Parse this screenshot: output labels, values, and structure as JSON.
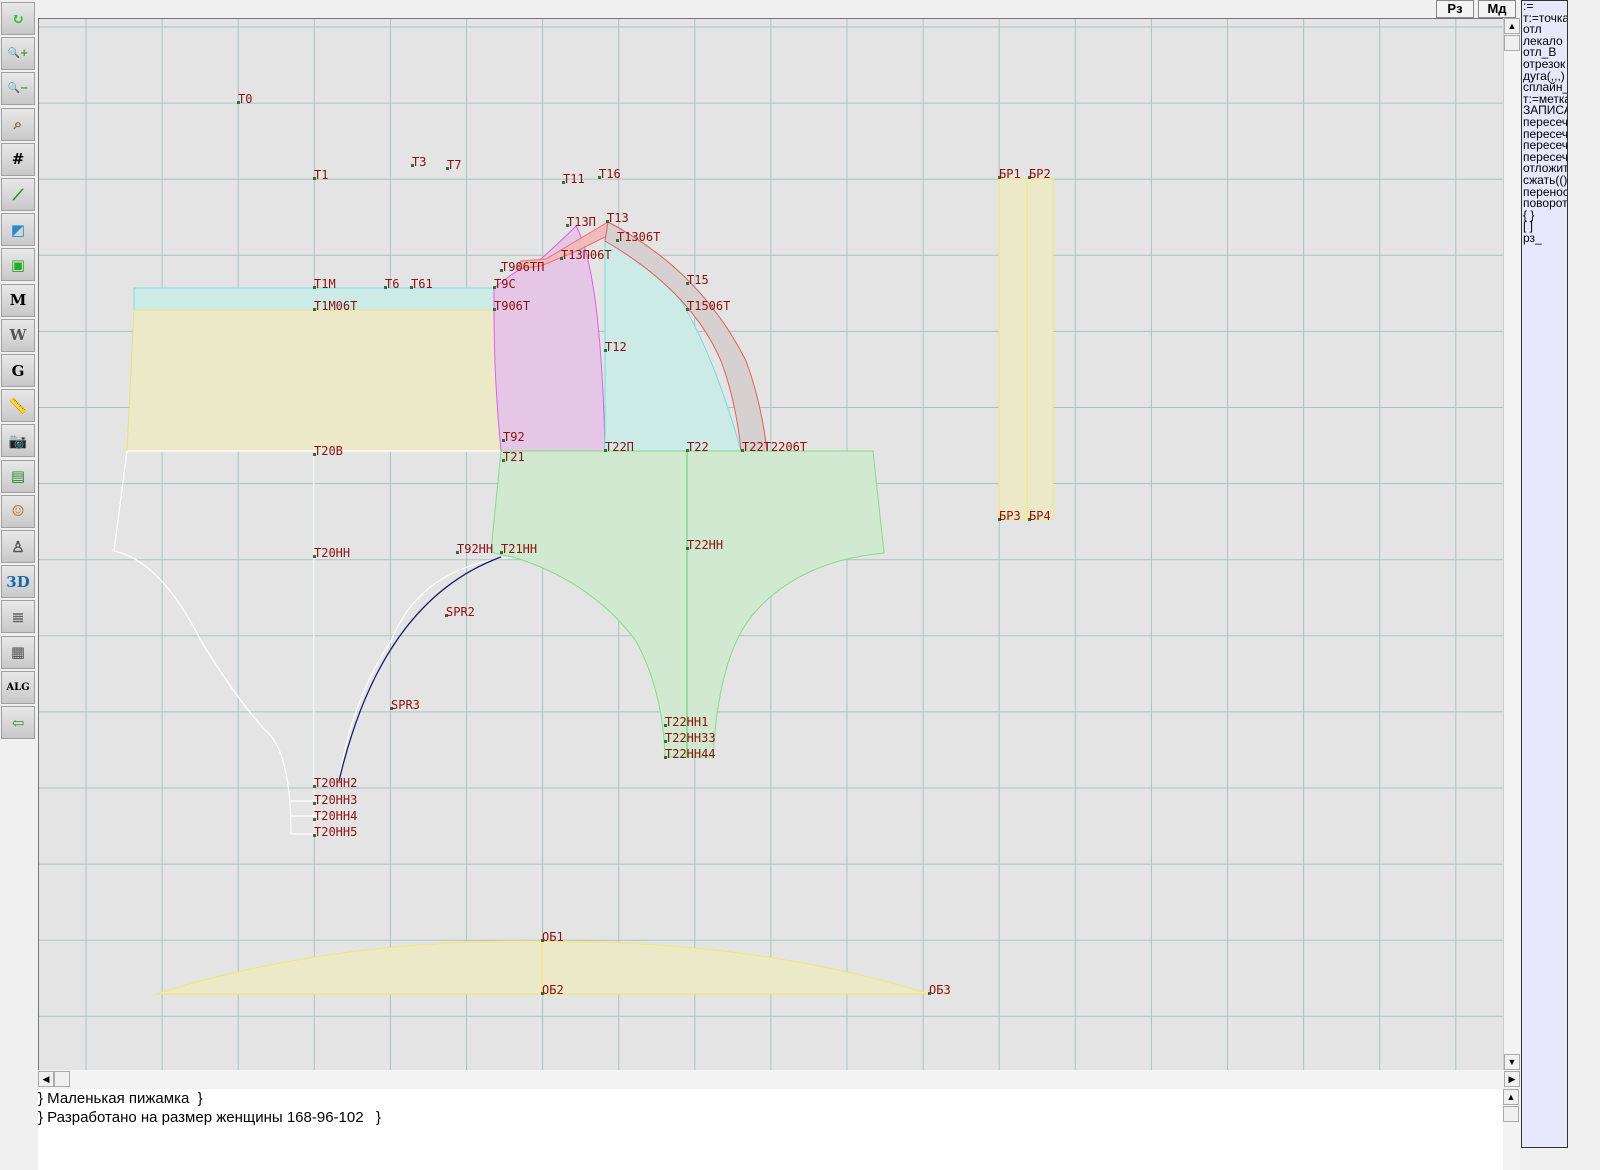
{
  "toolbar": {
    "tools": [
      {
        "icon": "refresh-icon",
        "glyph": "↻",
        "color": "#30c030"
      },
      {
        "icon": "zoom-in-icon",
        "glyph": "🔍+",
        "color": "#2a9a2a"
      },
      {
        "icon": "zoom-out-icon",
        "glyph": "🔍−",
        "color": "#2a9a2a"
      },
      {
        "icon": "pattern-view-icon",
        "glyph": "⌕",
        "color": "#8b6a3a"
      },
      {
        "icon": "grid-icon",
        "glyph": "#",
        "color": "#000000"
      },
      {
        "icon": "line-segment-icon",
        "glyph": "⟋",
        "color": "#1a8a1a"
      },
      {
        "icon": "map-piece-icon",
        "glyph": "◩",
        "color": "#2a8acb"
      },
      {
        "icon": "pattern-piece-icon",
        "glyph": "▣",
        "color": "#2aaa2a"
      },
      {
        "icon": "pattern-m-icon",
        "glyph": "M",
        "color": "#000000"
      },
      {
        "icon": "compass-icon",
        "glyph": "W",
        "color": "#555555"
      },
      {
        "icon": "pattern-g-icon",
        "glyph": "G",
        "color": "#000000"
      },
      {
        "icon": "measure-tape-icon",
        "glyph": "📏",
        "color": "#4a7ab0"
      },
      {
        "icon": "camera-icon",
        "glyph": "📷",
        "color": "#333333"
      },
      {
        "icon": "table-icon",
        "glyph": "▤",
        "color": "#2a8a2a"
      },
      {
        "icon": "woman-avatar-icon",
        "glyph": "☺",
        "color": "#c08040"
      },
      {
        "icon": "jacket-icon",
        "glyph": "♙",
        "color": "#555555"
      },
      {
        "icon": "3d-view-icon",
        "glyph": "3D",
        "color": "#1a6ab0"
      },
      {
        "icon": "document-icon",
        "glyph": "≣",
        "color": "#666666"
      },
      {
        "icon": "books-icon",
        "glyph": "▦",
        "color": "#555555"
      },
      {
        "icon": "algorithm-icon",
        "glyph": "ALG",
        "color": "#000000"
      },
      {
        "icon": "exit-icon",
        "glyph": "⇦",
        "color": "#2a9a2a"
      }
    ]
  },
  "top_buttons": {
    "rz": "Рз",
    "md": "Мд"
  },
  "command_panel": {
    "items": [
      ":=",
      "т:=точка",
      "отл",
      "лекало",
      "отл_В",
      "отрезок",
      "дуга(,,,)",
      "сплайн_",
      "т:=метка",
      "ЗАПИСАТЬ",
      "пересечь",
      "пересечь",
      "пересечь",
      "пересечь",
      "отложить",
      "сжать(()",
      "перенос",
      "поворот",
      "{  }",
      "[  ]",
      "рз_"
    ]
  },
  "notes": {
    "lines": [
      "} Маленькая пижамка  }",
      "} Разработано на размер женщины 168-96-102   }"
    ]
  },
  "colors": {
    "canvas": "#e4e4e4",
    "grid": "#a9c3c3",
    "point_label": "#8b1010",
    "yellow_fill": "#ece9c8",
    "cyan_fill": "#cdebe6",
    "magenta_fill": "#e6c6e6",
    "green_fill": "#d0e9d0",
    "gray_band": "#d6d0d0"
  },
  "drawing": {
    "labels": [
      "Т0",
      "Т1",
      "Т3",
      "Т7",
      "Т11",
      "Т16",
      "Т13П",
      "Т13",
      "Т13П06Т",
      "Т1306Т",
      "Т906ТП",
      "Т15",
      "Т1М",
      "Т6",
      "Т61",
      "Т9С",
      "Т1М06Т",
      "Т906Т",
      "Т1506Т",
      "Т12",
      "Т20В",
      "Т92",
      "Т21",
      "Т22П",
      "Т22",
      "Т22Т2206Т",
      "БР1",
      "БР2",
      "БР3",
      "БР4",
      "Т20НН",
      "Т92НН",
      "Т21НН",
      "Т22НН",
      "SPR2",
      "SPR3",
      "Т20НН2",
      "Т20НН3",
      "Т20НН4",
      "Т20НН5",
      "Т22НН1",
      "Т22НН33",
      "Т22НН44",
      "ОБ1",
      "ОБ2",
      "ОБ3"
    ]
  }
}
